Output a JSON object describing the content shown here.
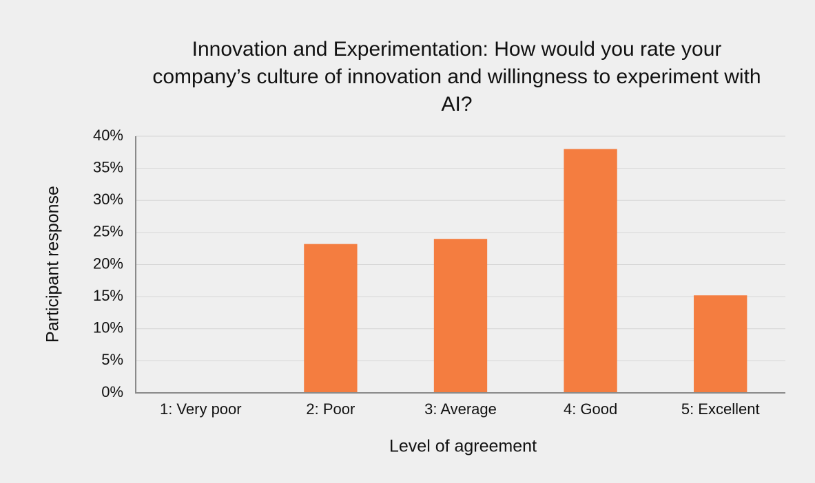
{
  "chart_data": {
    "type": "bar",
    "title": "Innovation and Experimentation: How would you rate your company’s culture of innovation and willingness to experiment with AI?",
    "x_label": "Level of agreement",
    "y_label": "Participant response",
    "categories": [
      "1: Very poor",
      "2: Poor",
      "3: Average",
      "4: Good",
      "5: Excellent"
    ],
    "values": [
      0,
      23.2,
      24,
      38,
      15.2
    ],
    "color": "#f47d40",
    "ylim": [
      0,
      40
    ],
    "yticks": [
      {
        "value": 0,
        "label": "0%"
      },
      {
        "value": 5,
        "label": "5%"
      },
      {
        "value": 10,
        "label": "10%"
      },
      {
        "value": 15,
        "label": "15%"
      },
      {
        "value": 20,
        "label": "20%"
      },
      {
        "value": 25,
        "label": "25%"
      },
      {
        "value": 30,
        "label": "30%"
      },
      {
        "value": 35,
        "label": "35%"
      },
      {
        "value": 40,
        "label": "40%"
      }
    ],
    "grid": true
  }
}
